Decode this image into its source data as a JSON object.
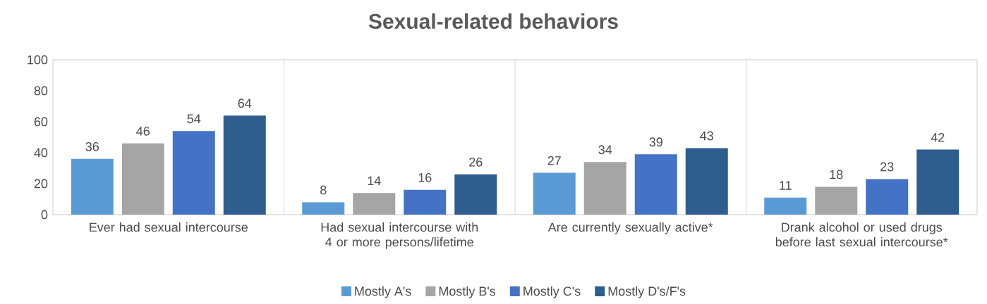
{
  "chart_data": {
    "type": "bar",
    "title": "Sexual-related behaviors",
    "categories": [
      "Ever had sexual intercourse",
      "Had sexual intercourse with 4 or more persons/lifetime",
      "Are currently sexually active*",
      "Drank alcohol or used drugs before last sexual intercourse*"
    ],
    "series": [
      {
        "name": "Mostly A's",
        "color": "#5b9bd5",
        "values": [
          36,
          8,
          27,
          11
        ]
      },
      {
        "name": "Mostly B's",
        "color": "#a5a5a5",
        "values": [
          46,
          14,
          34,
          18
        ]
      },
      {
        "name": "Mostly C's",
        "color": "#4472c4",
        "values": [
          54,
          16,
          39,
          23
        ]
      },
      {
        "name": "Mostly D's/F's",
        "color": "#2e5d8e",
        "values": [
          64,
          26,
          43,
          42
        ]
      }
    ],
    "ylim": [
      0,
      100
    ],
    "yticks": [
      0,
      20,
      40,
      60,
      80,
      100
    ],
    "grid": "x",
    "legend": "bottom",
    "data_labels": true
  }
}
